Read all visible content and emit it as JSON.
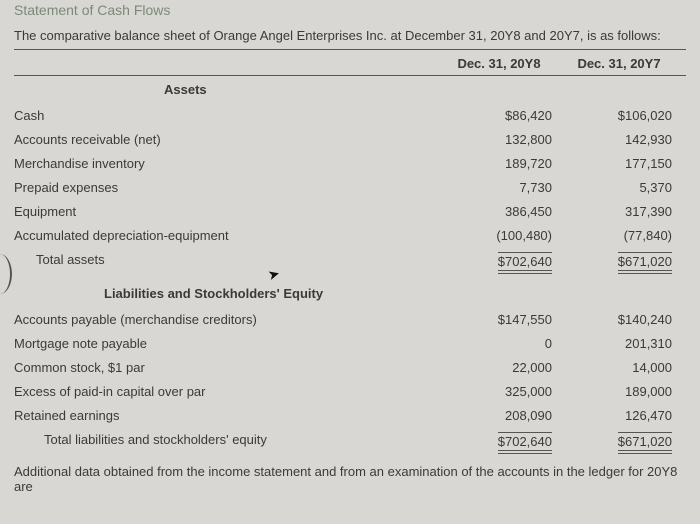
{
  "title": "Statement of Cash Flows",
  "intro": "The comparative balance sheet of Orange Angel Enterprises Inc. at December 31, 20Y8 and 20Y7, is as follows:",
  "colA": "Dec. 31, 20Y8",
  "colB": "Dec. 31, 20Y7",
  "assetsHead": "Assets",
  "liabHead": "Liabilities and Stockholders' Equity",
  "rows1": [
    {
      "label": "Cash",
      "a": "$86,420",
      "b": "$106,020",
      "indent": 0
    },
    {
      "label": "Accounts receivable (net)",
      "a": "132,800",
      "b": "142,930",
      "indent": 0
    },
    {
      "label": "Merchandise inventory",
      "a": "189,720",
      "b": "177,150",
      "indent": 0
    },
    {
      "label": "Prepaid expenses",
      "a": "7,730",
      "b": "5,370",
      "indent": 0
    },
    {
      "label": "Equipment",
      "a": "386,450",
      "b": "317,390",
      "indent": 0
    },
    {
      "label": "Accumulated depreciation-equipment",
      "a": "(100,480)",
      "b": "(77,840)",
      "indent": 0
    },
    {
      "label": "Total assets",
      "a": "$702,640",
      "b": "$671,020",
      "indent": 1,
      "total": true
    }
  ],
  "rows2": [
    {
      "label": "Accounts payable (merchandise creditors)",
      "a": "$147,550",
      "b": "$140,240",
      "indent": 0
    },
    {
      "label": "Mortgage note payable",
      "a": "0",
      "b": "201,310",
      "indent": 0
    },
    {
      "label": "Common stock, $1 par",
      "a": "22,000",
      "b": "14,000",
      "indent": 0
    },
    {
      "label": "Excess of paid-in capital over par",
      "a": "325,000",
      "b": "189,000",
      "indent": 0
    },
    {
      "label": "Retained earnings",
      "a": "208,090",
      "b": "126,470",
      "indent": 0
    },
    {
      "label": "Total liabilities and stockholders' equity",
      "a": "$702,640",
      "b": "$671,020",
      "indent": 2,
      "total": true
    }
  ],
  "footer": "Additional data obtained from the income statement and from an examination of the accounts in the ledger for 20Y8 are",
  "colors": {
    "bg": "#d8d7d3",
    "text": "#3a3a38",
    "titleColor": "#7a8a78",
    "rule": "#555"
  }
}
